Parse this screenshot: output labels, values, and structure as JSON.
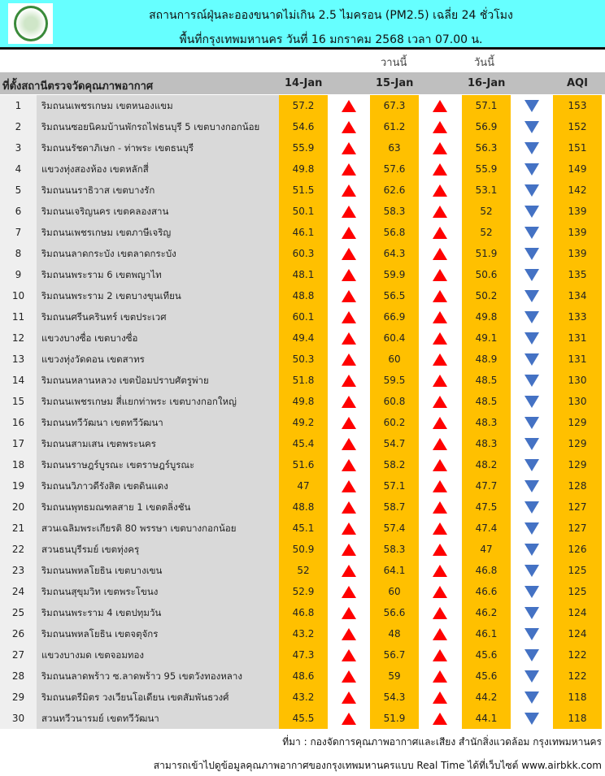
{
  "header": {
    "title": "สถานการณ์ฝุ่นละอองขนาดไม่เกิน 2.5 ไมครอน (PM2.5) เฉลี่ย 24 ชั่วโมง",
    "subtitle": "พื้นที่กรุงเทพมหานคร วันที่ 16 มกราคม 2568 เวลา 07.00 น.",
    "logo": "ตรากรุงเทพมหานคร"
  },
  "labels": {
    "yesterday": "วานนี้",
    "today": "วันนี้"
  },
  "columns": {
    "location": "ที่ตั้งสถานีตรวจวัดคุณภาพอากาศ",
    "d1": "14-Jan",
    "d2": "15-Jan",
    "d3": "16-Jan",
    "aqi": "AQI"
  },
  "colors": {
    "header": "#66ffff",
    "value": "#ffc000",
    "up": "#ff0000",
    "down": "#4472c4"
  },
  "rows": [
    {
      "no": "1",
      "name": "ริมถนนเพชรเกษม เขตหนองแขม",
      "d1": "57.2",
      "t1": "up",
      "d2": "67.3",
      "t2": "up",
      "d3": "57.1",
      "t3": "down",
      "aqi": "153"
    },
    {
      "no": "2",
      "name": "ริมถนนซอยนิคมบ้านพักรถไฟธนบุรี 5 เขตบางกอกน้อย",
      "d1": "54.6",
      "t1": "up",
      "d2": "61.2",
      "t2": "up",
      "d3": "56.9",
      "t3": "down",
      "aqi": "152"
    },
    {
      "no": "3",
      "name": "ริมถนนรัชดาภิเษก - ท่าพระ เขตธนบุรี",
      "d1": "55.9",
      "t1": "up",
      "d2": "63",
      "t2": "up",
      "d3": "56.3",
      "t3": "down",
      "aqi": "151"
    },
    {
      "no": "4",
      "name": "แขวงทุ่งสองห้อง เขตหลักสี่",
      "d1": "49.8",
      "t1": "up",
      "d2": "57.6",
      "t2": "up",
      "d3": "55.9",
      "t3": "down",
      "aqi": "149"
    },
    {
      "no": "5",
      "name": "ริมถนนนราธิวาส เขตบางรัก",
      "d1": "51.5",
      "t1": "up",
      "d2": "62.6",
      "t2": "up",
      "d3": "53.1",
      "t3": "down",
      "aqi": "142"
    },
    {
      "no": "6",
      "name": "ริมถนนเจริญนคร เขตคลองสาน",
      "d1": "50.1",
      "t1": "up",
      "d2": "58.3",
      "t2": "up",
      "d3": "52",
      "t3": "down",
      "aqi": "139"
    },
    {
      "no": "7",
      "name": "ริมถนนเพชรเกษม เขตภาษีเจริญ",
      "d1": "46.1",
      "t1": "up",
      "d2": "56.8",
      "t2": "up",
      "d3": "52",
      "t3": "down",
      "aqi": "139"
    },
    {
      "no": "8",
      "name": "ริมถนนลาดกระบัง เขตลาดกระบัง",
      "d1": "60.3",
      "t1": "up",
      "d2": "64.3",
      "t2": "up",
      "d3": "51.9",
      "t3": "down",
      "aqi": "139"
    },
    {
      "no": "9",
      "name": "ริมถนนพระราม 6 เขตพญาไท",
      "d1": "48.1",
      "t1": "up",
      "d2": "59.9",
      "t2": "up",
      "d3": "50.6",
      "t3": "down",
      "aqi": "135"
    },
    {
      "no": "10",
      "name": "ริมถนนพระราม 2 เขตบางขุนเทียน",
      "d1": "48.8",
      "t1": "up",
      "d2": "56.5",
      "t2": "up",
      "d3": "50.2",
      "t3": "down",
      "aqi": "134"
    },
    {
      "no": "11",
      "name": "ริมถนนศรีนครินทร์ เขตประเวศ",
      "d1": "60.1",
      "t1": "up",
      "d2": "66.9",
      "t2": "up",
      "d3": "49.8",
      "t3": "down",
      "aqi": "133"
    },
    {
      "no": "12",
      "name": "แขวงบางซื่อ เขตบางซื่อ",
      "d1": "49.4",
      "t1": "up",
      "d2": "60.4",
      "t2": "up",
      "d3": "49.1",
      "t3": "down",
      "aqi": "131"
    },
    {
      "no": "13",
      "name": "แขวงทุ่งวัดดอน เขตสาทร",
      "d1": "50.3",
      "t1": "up",
      "d2": "60",
      "t2": "up",
      "d3": "48.9",
      "t3": "down",
      "aqi": "131"
    },
    {
      "no": "14",
      "name": "ริมถนนหลานหลวง เขตป้อมปราบศัตรูพ่าย",
      "d1": "51.8",
      "t1": "up",
      "d2": "59.5",
      "t2": "up",
      "d3": "48.5",
      "t3": "down",
      "aqi": "130"
    },
    {
      "no": "15",
      "name": "ริมถนนเพชรเกษม สี่แยกท่าพระ เขตบางกอกใหญ่",
      "d1": "49.8",
      "t1": "up",
      "d2": "60.8",
      "t2": "up",
      "d3": "48.5",
      "t3": "down",
      "aqi": "130"
    },
    {
      "no": "16",
      "name": "ริมถนนทวีวัฒนา เขตทวีวัฒนา",
      "d1": "49.2",
      "t1": "up",
      "d2": "60.2",
      "t2": "up",
      "d3": "48.3",
      "t3": "down",
      "aqi": "129"
    },
    {
      "no": "17",
      "name": "ริมถนนสามเสน เขตพระนคร",
      "d1": "45.4",
      "t1": "up",
      "d2": "54.7",
      "t2": "up",
      "d3": "48.3",
      "t3": "down",
      "aqi": "129"
    },
    {
      "no": "18",
      "name": "ริมถนนราษฎร์บูรณะ เขตราษฎร์บูรณะ",
      "d1": "51.6",
      "t1": "up",
      "d2": "58.2",
      "t2": "up",
      "d3": "48.2",
      "t3": "down",
      "aqi": "129"
    },
    {
      "no": "19",
      "name": "ริมถนนวิภาวดีรังสิต เขตดินแดง",
      "d1": "47",
      "t1": "up",
      "d2": "57.1",
      "t2": "up",
      "d3": "47.7",
      "t3": "down",
      "aqi": "128"
    },
    {
      "no": "20",
      "name": "ริมถนนพุทธมณฑลสาย 1 เขตตลิ่งชัน",
      "d1": "48.8",
      "t1": "up",
      "d2": "58.7",
      "t2": "up",
      "d3": "47.5",
      "t3": "down",
      "aqi": "127"
    },
    {
      "no": "21",
      "name": "สวนเฉลิมพระเกียรติ 80 พรรษา  เขตบางกอกน้อย",
      "d1": "45.1",
      "t1": "up",
      "d2": "57.4",
      "t2": "up",
      "d3": "47.4",
      "t3": "down",
      "aqi": "127"
    },
    {
      "no": "22",
      "name": "สวนธนบุรีรมย์ เขตทุ่งครุ",
      "d1": "50.9",
      "t1": "up",
      "d2": "58.3",
      "t2": "up",
      "d3": "47",
      "t3": "down",
      "aqi": "126"
    },
    {
      "no": "23",
      "name": "ริมถนนพหลโยธิน เขตบางเขน",
      "d1": "52",
      "t1": "up",
      "d2": "64.1",
      "t2": "up",
      "d3": "46.8",
      "t3": "down",
      "aqi": "125"
    },
    {
      "no": "24",
      "name": "ริมถนนสุขุมวิท เขตพระโขนง",
      "d1": "52.9",
      "t1": "up",
      "d2": "60",
      "t2": "up",
      "d3": "46.6",
      "t3": "down",
      "aqi": "125"
    },
    {
      "no": "25",
      "name": "ริมถนนพระราม 4 เขตปทุมวัน",
      "d1": "46.8",
      "t1": "up",
      "d2": "56.6",
      "t2": "up",
      "d3": "46.2",
      "t3": "down",
      "aqi": "124"
    },
    {
      "no": "26",
      "name": "ริมถนนพหลโยธิน เขตจตุจักร",
      "d1": "43.2",
      "t1": "up",
      "d2": "48",
      "t2": "up",
      "d3": "46.1",
      "t3": "down",
      "aqi": "124"
    },
    {
      "no": "27",
      "name": "แขวงบางมด เขตจอมทอง",
      "d1": "47.3",
      "t1": "up",
      "d2": "56.7",
      "t2": "up",
      "d3": "45.6",
      "t3": "down",
      "aqi": "122"
    },
    {
      "no": "28",
      "name": "ริมถนนลาดพร้าว ซ.ลาดพร้าว 95 เขตวังทองหลาง",
      "d1": "48.6",
      "t1": "up",
      "d2": "59",
      "t2": "up",
      "d3": "45.6",
      "t3": "down",
      "aqi": "122"
    },
    {
      "no": "29",
      "name": "ริมถนนตรีมิตร วงเวียนโอเดียน เขตสัมพันธวงศ์",
      "d1": "43.2",
      "t1": "up",
      "d2": "54.3",
      "t2": "up",
      "d3": "44.2",
      "t3": "down",
      "aqi": "118"
    },
    {
      "no": "30",
      "name": "สวนทวีวนารมย์ เขตทวีวัฒนา",
      "d1": "45.5",
      "t1": "up",
      "d2": "51.9",
      "t2": "up",
      "d3": "44.1",
      "t3": "down",
      "aqi": "118"
    }
  ],
  "footer": {
    "source": "ที่มา : กองจัดการคุณภาพอากาศและเสียง สำนักสิ่งแวดล้อม กรุงเทพมหานคร",
    "realtime": "สามารถเข้าไปดูข้อมูลคุณภาพอากาศของกรุงเทพมหานครแบบ Real Time ได้ที่เว็บไซต์ www.airbkk.com"
  }
}
